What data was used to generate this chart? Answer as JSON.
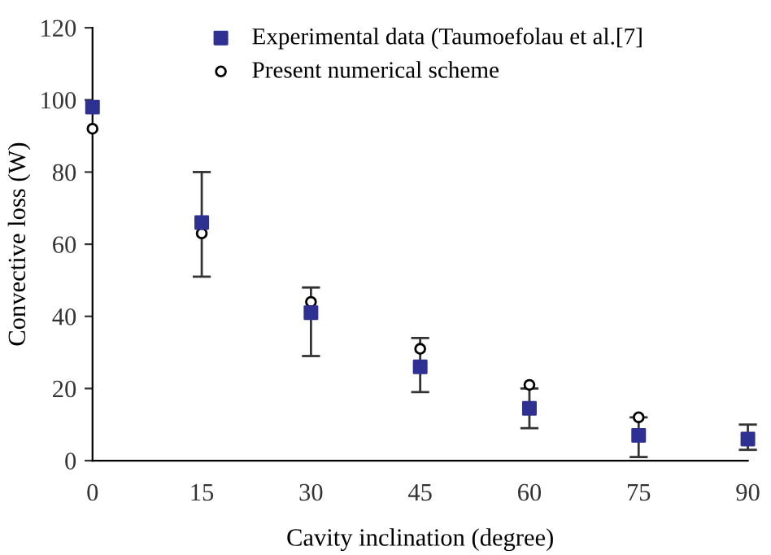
{
  "chart_data": {
    "type": "scatter",
    "xlabel": "Cavity inclination (degree)",
    "ylabel": "Convective loss (W)",
    "x": [
      0,
      15,
      30,
      45,
      60,
      75,
      90
    ],
    "series": [
      {
        "name": "Experimental data (Taumoefolau et al.[7]",
        "color": "#2e3192",
        "marker": "square",
        "values": [
          98,
          66,
          41,
          26,
          14.5,
          7,
          6
        ],
        "errors": [
          null,
          [
            51,
            80
          ],
          [
            29,
            48
          ],
          [
            19,
            34
          ],
          [
            9,
            20
          ],
          [
            1,
            12
          ],
          [
            3,
            10
          ]
        ]
      },
      {
        "name": "Present numerical scheme",
        "color": "#000000",
        "marker": "circle",
        "values": [
          92,
          63,
          44,
          31,
          21,
          12,
          null
        ]
      }
    ],
    "xlim": [
      0,
      90
    ],
    "ylim": [
      0,
      120
    ],
    "xticks": [
      0,
      15,
      30,
      45,
      60,
      75,
      90
    ],
    "yticks": [
      0,
      20,
      40,
      60,
      80,
      100,
      120
    ],
    "grid": false,
    "legend": "top"
  }
}
